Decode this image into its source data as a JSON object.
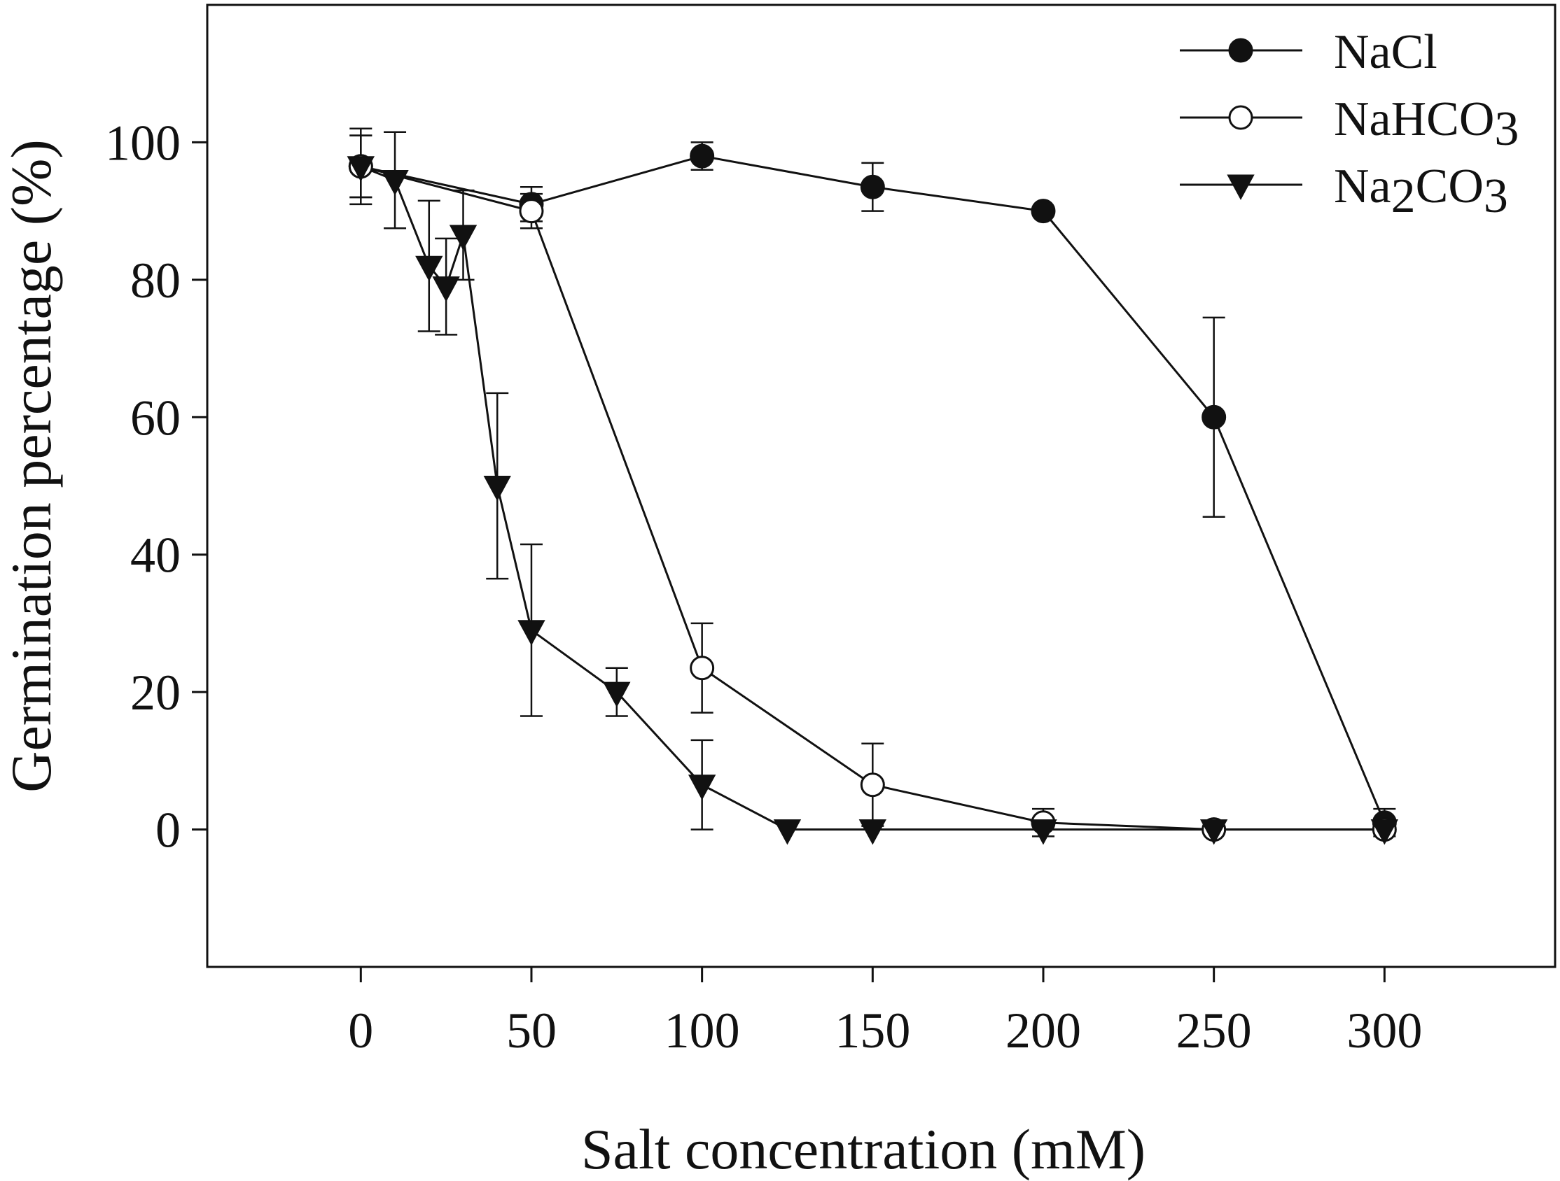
{
  "chart_data": {
    "type": "line",
    "title": "",
    "xlabel": "Salt concentration (mM)",
    "ylabel": "Germination percentage (%)",
    "xlim": [
      -45,
      350
    ],
    "ylim": [
      -20,
      120
    ],
    "xticks": [
      0,
      50,
      100,
      150,
      200,
      250,
      300
    ],
    "yticks": [
      0,
      20,
      40,
      60,
      80,
      100
    ],
    "xtick_labels": [
      "0",
      "50",
      "100",
      "150",
      "200",
      "250",
      "300"
    ],
    "ytick_labels": [
      "0",
      "20",
      "40",
      "60",
      "80",
      "100"
    ],
    "grid": false,
    "legend_position": "top-right",
    "series": [
      {
        "name": "NaCl",
        "label_main": "NaCl",
        "label_sub": "",
        "label_tail": "",
        "marker": "filled-circle",
        "color": "#111111",
        "x": [
          0,
          50,
          100,
          150,
          200,
          250,
          300
        ],
        "y": [
          96.5,
          91,
          98,
          93.5,
          90,
          60,
          1
        ],
        "error": [
          4.5,
          2.5,
          2,
          3.5,
          0,
          14.5,
          2
        ]
      },
      {
        "name": "NaHCO3",
        "label_main": "NaHCO",
        "label_sub": "3",
        "label_tail": "",
        "marker": "open-circle",
        "color": "#111111",
        "x": [
          0,
          50,
          100,
          150,
          200,
          250,
          300
        ],
        "y": [
          96.5,
          90,
          23.5,
          6.5,
          1,
          0,
          0
        ],
        "error": [
          4.5,
          2.5,
          6.5,
          6,
          2,
          0,
          0
        ]
      },
      {
        "name": "Na2CO3",
        "label_main": "Na",
        "label_sub": "2",
        "label_tail": "CO",
        "label_sub2": "3",
        "marker": "filled-triangle-down",
        "color": "#111111",
        "x": [
          0,
          10,
          20,
          25,
          30,
          40,
          50,
          75,
          100,
          125,
          150,
          200,
          250,
          300
        ],
        "y": [
          96.5,
          94.5,
          82,
          79,
          86.5,
          50,
          29,
          20,
          6.5,
          0,
          0,
          0,
          0,
          0
        ],
        "error": [
          5.5,
          7,
          9.5,
          7,
          6.5,
          13.5,
          12.5,
          3.5,
          6.5,
          0,
          0,
          0,
          0,
          0
        ]
      }
    ]
  }
}
